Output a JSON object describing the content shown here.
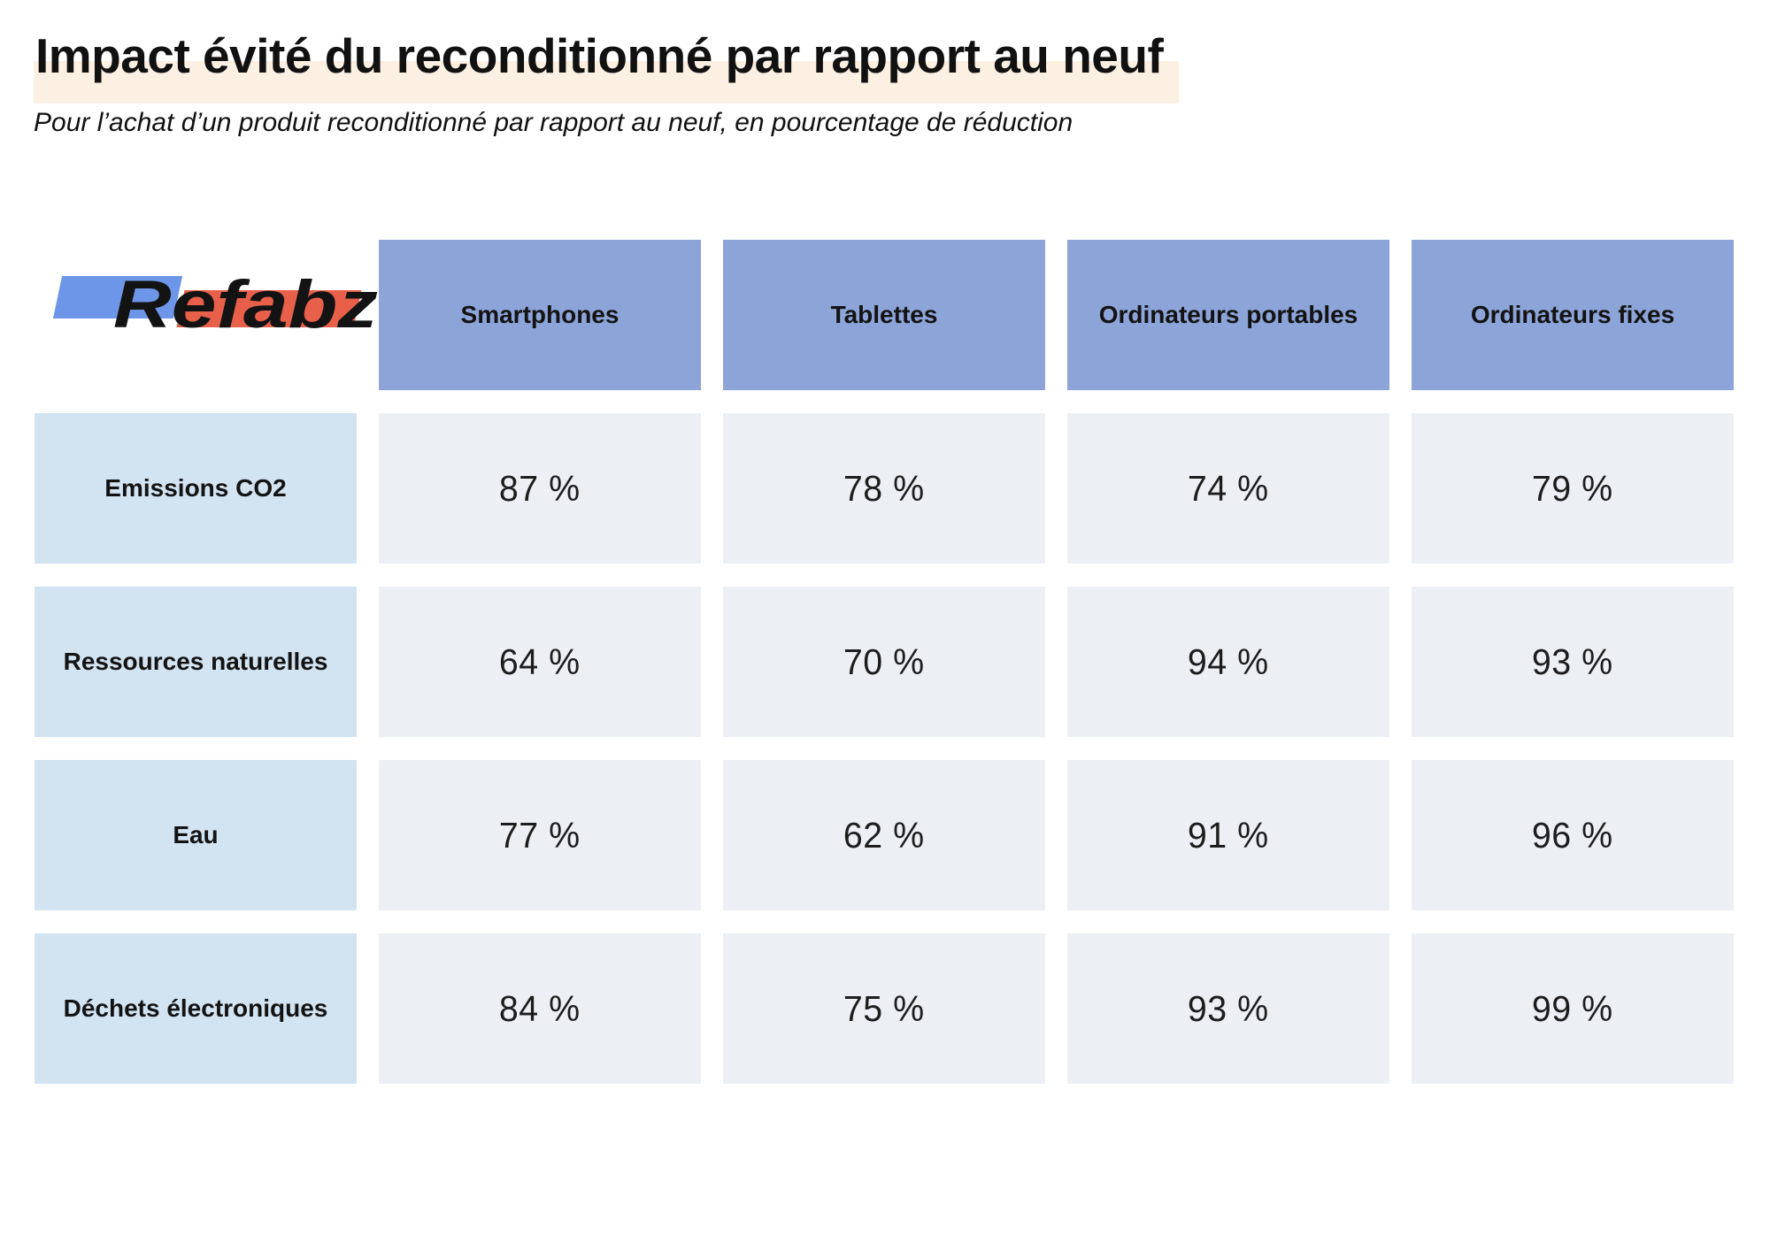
{
  "header": {
    "title": "Impact évité du reconditionné par rapport au neuf",
    "subtitle": "Pour l’achat d’un produit reconditionné par rapport au neuf, en pourcentage de réduction"
  },
  "logo": {
    "text": "Refabz"
  },
  "colors": {
    "column_header_bg": "#8CA4D8",
    "row_label_bg": "#D2E3F2",
    "value_cell_bg": "#ECF0F5",
    "title_highlight": "#FBF0E2",
    "logo_blue": "#6E96E8",
    "logo_red": "#E8604A",
    "text": "#131313",
    "background": "#FFFFFF"
  },
  "chart_data": {
    "type": "table",
    "title": "Impact évité du reconditionné par rapport au neuf",
    "subtitle": "Pour l’achat d’un produit reconditionné par rapport au neuf, en pourcentage de réduction",
    "unit": "%",
    "columns": [
      "Smartphones",
      "Tablettes",
      "Ordinateurs portables",
      "Ordinateurs fixes"
    ],
    "rows": [
      {
        "label": "Emissions CO2",
        "values": [
          "87 %",
          "78 %",
          "74 %",
          "79 %"
        ],
        "values_numeric": [
          87,
          78,
          74,
          79
        ]
      },
      {
        "label": "Ressources naturelles",
        "values": [
          "64 %",
          "70 %",
          "94 %",
          "93 %"
        ],
        "values_numeric": [
          64,
          70,
          94,
          93
        ]
      },
      {
        "label": "Eau",
        "values": [
          "77 %",
          "62 %",
          "91 %",
          "96 %"
        ],
        "values_numeric": [
          77,
          62,
          91,
          96
        ]
      },
      {
        "label": "Déchets électroniques",
        "values": [
          "84 %",
          "75 %",
          "93 %",
          "99 %"
        ],
        "values_numeric": [
          84,
          75,
          93,
          99
        ]
      }
    ]
  }
}
